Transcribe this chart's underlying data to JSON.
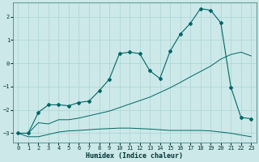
{
  "xlabel": "Humidex (Indice chaleur)",
  "background_color": "#cce8e8",
  "grid_color": "#aad4d4",
  "line_color": "#006666",
  "text_color": "#003333",
  "xlim": [
    -0.5,
    23.5
  ],
  "ylim": [
    -3.4,
    2.6
  ],
  "yticks": [
    -3,
    -2,
    -1,
    0,
    1,
    2
  ],
  "xticks": [
    0,
    1,
    2,
    3,
    4,
    5,
    6,
    7,
    8,
    9,
    10,
    11,
    12,
    13,
    14,
    15,
    16,
    17,
    18,
    19,
    20,
    21,
    22,
    23
  ],
  "line_flat_x": [
    0,
    1,
    2,
    3,
    4,
    5,
    6,
    7,
    8,
    9,
    10,
    11,
    12,
    13,
    14,
    15,
    16,
    17,
    18,
    19,
    20,
    21,
    22,
    23
  ],
  "line_flat_y": [
    -3.0,
    -3.15,
    -3.15,
    -3.05,
    -2.95,
    -2.9,
    -2.88,
    -2.85,
    -2.82,
    -2.8,
    -2.78,
    -2.78,
    -2.8,
    -2.82,
    -2.85,
    -2.88,
    -2.88,
    -2.88,
    -2.88,
    -2.9,
    -2.95,
    -3.0,
    -3.08,
    -3.15
  ],
  "line_diag_x": [
    0,
    1,
    2,
    3,
    4,
    5,
    6,
    7,
    8,
    9,
    10,
    11,
    12,
    13,
    14,
    15,
    16,
    17,
    18,
    19,
    20,
    21,
    22,
    23
  ],
  "line_diag_y": [
    -3.0,
    -3.0,
    -2.55,
    -2.6,
    -2.42,
    -2.42,
    -2.35,
    -2.25,
    -2.15,
    -2.05,
    -1.9,
    -1.75,
    -1.6,
    -1.45,
    -1.25,
    -1.05,
    -0.82,
    -0.58,
    -0.35,
    -0.12,
    0.18,
    0.38,
    0.48,
    0.32
  ],
  "line_main_x": [
    0,
    1,
    2,
    3,
    4,
    5,
    6,
    7,
    8,
    9,
    10,
    11,
    12,
    13,
    14,
    15,
    16,
    17,
    18,
    19,
    20,
    21,
    22,
    23
  ],
  "line_main_y": [
    -3.0,
    -3.0,
    -2.1,
    -1.78,
    -1.78,
    -1.82,
    -1.68,
    -1.62,
    -1.18,
    -0.68,
    0.42,
    0.48,
    0.42,
    -0.32,
    -0.65,
    0.52,
    1.25,
    1.72,
    2.35,
    2.28,
    1.75,
    -1.02,
    -2.32,
    -2.38
  ],
  "line_markers_x": [
    0,
    1,
    2,
    3,
    4,
    5,
    6,
    7,
    8,
    9,
    10,
    11,
    12,
    13,
    14,
    15,
    16,
    17,
    18,
    19,
    20,
    21,
    22,
    23
  ],
  "line_markers_y": [
    -3.0,
    -3.0,
    -2.1,
    -1.78,
    -1.78,
    -1.82,
    -1.68,
    -1.62,
    -1.18,
    -0.68,
    0.42,
    0.48,
    0.42,
    -0.32,
    -0.65,
    0.52,
    1.25,
    1.72,
    2.35,
    2.28,
    1.75,
    -1.02,
    -2.32,
    -2.38
  ]
}
